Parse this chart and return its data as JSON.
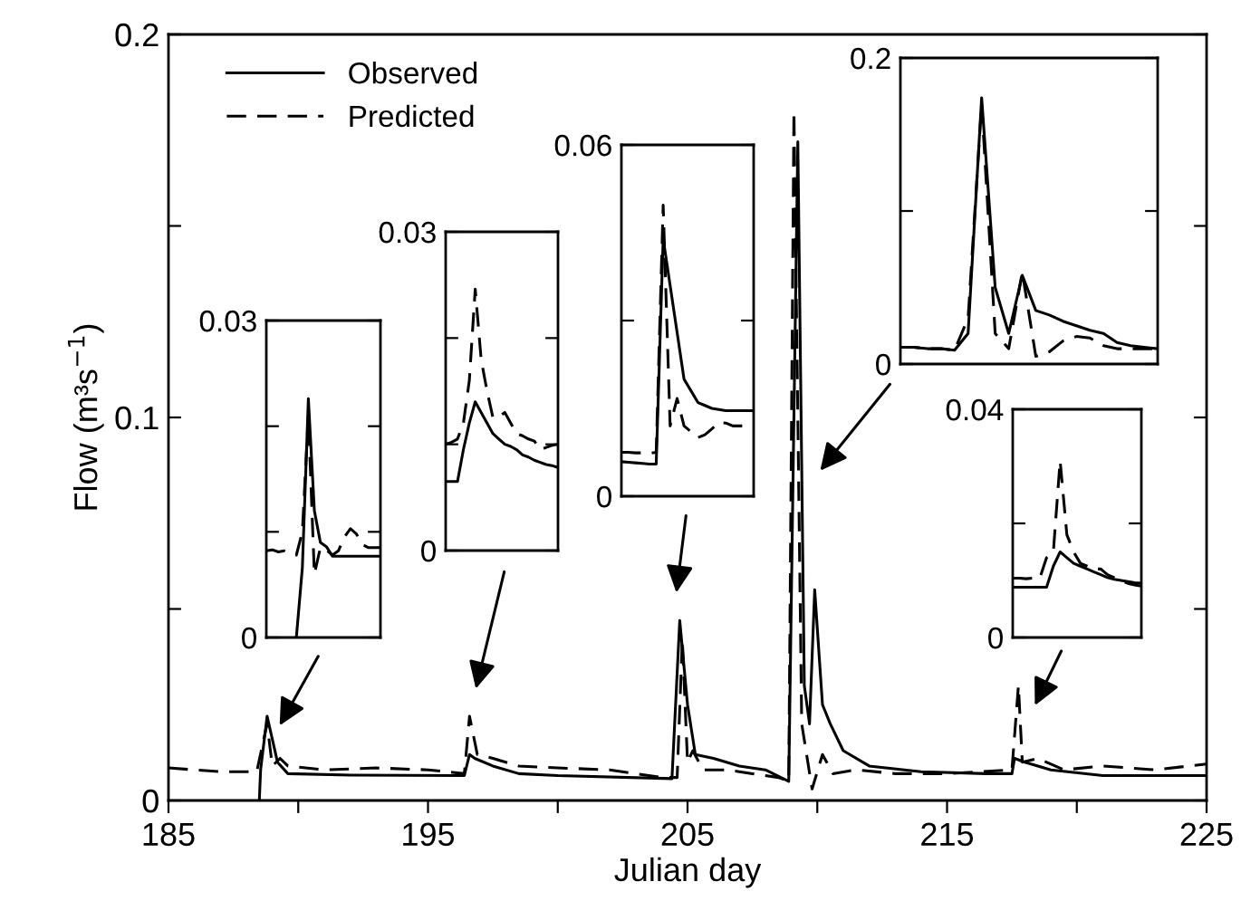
{
  "chart_data": [
    {
      "type": "line",
      "xlabel": "Julian day",
      "ylabel": "Flow (m³s$^{−1}$)",
      "legend": "top left",
      "xlim": [
        185,
        225
      ],
      "xticks": [
        185,
        {
          "value": 190,
          "label": null
        },
        195,
        {
          "value": 200,
          "label": null
        },
        205,
        {
          "value": 210,
          "label": null
        },
        215,
        {
          "value": 220,
          "label": null
        },
        225
      ],
      "ylim": [
        0,
        0.2
      ],
      "yticks": [
        0,
        {
          "value": 0.05,
          "label": null
        },
        0.1,
        {
          "value": 0.15,
          "label": null
        },
        0.2
      ],
      "series": [
        {
          "name": "Observed",
          "color": "#000000",
          "line_style": "solid",
          "x": [
            188.5,
            188.55,
            188.8,
            189.2,
            189.6,
            192,
            196.4,
            196.6,
            196.8,
            197.5,
            198.5,
            200,
            204.4,
            204.7,
            205.0,
            205.3,
            206,
            207,
            208,
            208.9,
            209.25,
            209.5,
            209.7,
            209.9,
            210.2,
            210.5,
            211,
            212,
            214,
            216.5,
            217.5,
            217.6,
            218,
            219,
            221,
            225
          ],
          "values": [
            0,
            0.008,
            0.022,
            0.01,
            0.007,
            0.0066,
            0.0065,
            0.012,
            0.011,
            0.009,
            0.007,
            0.0065,
            0.0057,
            0.047,
            0.025,
            0.012,
            0.011,
            0.009,
            0.008,
            0.005,
            0.172,
            0.03,
            0.02,
            0.055,
            0.025,
            0.02,
            0.013,
            0.009,
            0.0075,
            0.007,
            0.007,
            0.011,
            0.01,
            0.008,
            0.0065,
            0.0065
          ]
        },
        {
          "name": "Predicted",
          "color": "#000000",
          "line_style": "dashed",
          "x": [
            185,
            186,
            187,
            188.4,
            188.8,
            189.0,
            189.3,
            189.6,
            191,
            193,
            195,
            196.4,
            196.6,
            196.9,
            197.5,
            198.5,
            200,
            202,
            204,
            204.6,
            204.8,
            205.0,
            205.2,
            205.6,
            206.5,
            207.5,
            208.5,
            208.9,
            209.1,
            209.4,
            209.8,
            210.2,
            210.6,
            211.5,
            213,
            215,
            217.5,
            217.75,
            217.9,
            218.5,
            219.5,
            221,
            223,
            225
          ],
          "values": [
            0.0085,
            0.008,
            0.0075,
            0.0075,
            0.02,
            0.009,
            0.011,
            0.009,
            0.008,
            0.0085,
            0.008,
            0.007,
            0.022,
            0.012,
            0.011,
            0.009,
            0.0085,
            0.008,
            0.006,
            0.006,
            0.042,
            0.01,
            0.013,
            0.008,
            0.008,
            0.007,
            0.006,
            0.005,
            0.18,
            0.02,
            0.003,
            0.012,
            0.007,
            0.008,
            0.007,
            0.007,
            0.008,
            0.03,
            0.01,
            0.011,
            0.008,
            0.009,
            0.008,
            0.0095
          ]
        }
      ]
    },
    {
      "type": "line",
      "tick_labels": "y",
      "categories": [
        null,
        null,
        null,
        null,
        null,
        null,
        null,
        null,
        null,
        null,
        null,
        null,
        null,
        null,
        null,
        null,
        null,
        null,
        null,
        null
      ],
      "ylim": [
        0,
        0.03
      ],
      "yticks": [
        0,
        {
          "value": 0.01,
          "label": null
        },
        {
          "value": 0.02,
          "label": null
        },
        0.03
      ],
      "series": [
        {
          "color": "#000000",
          "line_style": "solid",
          "values": [
            null,
            null,
            null,
            null,
            null,
            0,
            0.0066,
            0.0226,
            0.012,
            0.009,
            0.0086,
            0.0077,
            0.0077,
            0.0077,
            0.0077,
            0.0077,
            0.0077,
            0.0077,
            0.0077,
            0.0077
          ]
        },
        {
          "color": "#000000",
          "line_style": "dashed",
          "values": [
            0.0082,
            0.0083,
            0.0081,
            0.0082,
            0.008,
            0.0078,
            0.01,
            0.021,
            0.006,
            0.0085,
            0.0083,
            0.0078,
            0.0082,
            0.0095,
            0.0103,
            0.0098,
            0.0088,
            0.0085,
            0.0085,
            0.0085
          ]
        }
      ]
    },
    {
      "type": "line",
      "tick_labels": "y",
      "categories": [
        null,
        null,
        null,
        null,
        null,
        null,
        null,
        null,
        null,
        null,
        null,
        null,
        null,
        null,
        null,
        null,
        null,
        null,
        null,
        null
      ],
      "ylim": [
        0,
        0.03
      ],
      "yticks": [
        0,
        {
          "value": 0.01,
          "label": null
        },
        {
          "value": 0.02,
          "label": null
        },
        0.03
      ],
      "series": [
        {
          "color": "#000000",
          "line_style": "solid",
          "values": [
            0.0065,
            0.0065,
            0.0065,
            0.0095,
            0.012,
            0.014,
            0.013,
            0.012,
            0.011,
            0.0105,
            0.01,
            0.0098,
            0.0095,
            0.009,
            0.0088,
            0.0085,
            0.0083,
            0.0081,
            0.008,
            0.0078
          ]
        },
        {
          "color": "#000000",
          "line_style": "dashed",
          "values": [
            0.01,
            0.0102,
            0.0105,
            0.012,
            0.016,
            0.0246,
            0.018,
            0.015,
            0.0125,
            0.0126,
            0.013,
            0.012,
            0.011,
            0.0108,
            0.0105,
            0.0103,
            0.0095,
            0.0097,
            0.0099,
            0.01
          ]
        }
      ]
    },
    {
      "type": "line",
      "tick_labels": "y",
      "categories": [
        null,
        null,
        null,
        null,
        null,
        null,
        null,
        null,
        null,
        null,
        null,
        null,
        null,
        null,
        null,
        null,
        null,
        null,
        null,
        null
      ],
      "ylim": [
        0,
        0.06
      ],
      "yticks": [
        0,
        {
          "value": 0.03,
          "label": null
        },
        0.06
      ],
      "series": [
        {
          "color": "#000000",
          "line_style": "solid",
          "values": [
            0.0059,
            0.0058,
            0.0057,
            0.0056,
            0.0055,
            0.0055,
            0.044,
            0.036,
            0.028,
            0.02,
            0.018,
            0.016,
            0.0155,
            0.015,
            0.0148,
            0.0146,
            0.0146,
            0.0146,
            0.0146,
            0.0146
          ]
        },
        {
          "color": "#000000",
          "line_style": "dashed",
          "values": [
            0.0075,
            0.0075,
            0.0074,
            0.0074,
            0.0073,
            0.0075,
            0.0497,
            0.012,
            0.0167,
            0.012,
            0.011,
            0.01,
            0.0105,
            0.0115,
            0.0126,
            0.0125,
            0.012,
            0.012,
            0.012,
            0.012
          ]
        }
      ]
    },
    {
      "type": "line",
      "tick_labels": "y",
      "categories": [
        null,
        null,
        null,
        null,
        null,
        null,
        null,
        null,
        null,
        null,
        null,
        null,
        null,
        null,
        null,
        null,
        null,
        null,
        null,
        null
      ],
      "ylim": [
        0,
        0.2
      ],
      "yticks": [
        0,
        {
          "value": 0.1,
          "label": null
        },
        0.2
      ],
      "series": [
        {
          "color": "#000000",
          "line_style": "solid",
          "values": [
            0.011,
            0.011,
            0.01,
            0.01,
            0.009,
            0.02,
            0.174,
            0.05,
            0.02,
            0.058,
            0.035,
            0.032,
            0.028,
            0.025,
            0.022,
            0.02,
            0.014,
            0.012,
            0.011,
            0.01
          ]
        },
        {
          "color": "#000000",
          "line_style": "dashed",
          "values": [
            0.011,
            0.011,
            0.01,
            0.01,
            0.009,
            0.03,
            0.17,
            0.02,
            0.01,
            0.06,
            0.005,
            0.008,
            0.015,
            0.018,
            0.017,
            0.012,
            0.01,
            0.01,
            0.01,
            0.01
          ]
        }
      ]
    },
    {
      "type": "line",
      "tick_labels": "y",
      "categories": [
        null,
        null,
        null,
        null,
        null,
        null,
        null,
        null,
        null,
        null,
        null,
        null,
        null,
        null,
        null,
        null,
        null,
        null,
        null,
        null
      ],
      "ylim": [
        0,
        0.04
      ],
      "yticks": [
        0,
        {
          "value": 0.02,
          "label": null
        },
        0.04
      ],
      "series": [
        {
          "color": "#000000",
          "line_style": "solid",
          "values": [
            0.0088,
            0.0088,
            0.0088,
            0.0088,
            0.0088,
            0.0088,
            0.0125,
            0.015,
            0.014,
            0.013,
            0.0125,
            0.012,
            0.0115,
            0.011,
            0.0105,
            0.0102,
            0.01,
            0.0098,
            0.0096,
            0.0095
          ]
        },
        {
          "color": "#000000",
          "line_style": "dashed",
          "values": [
            0.0104,
            0.0104,
            0.0103,
            0.0104,
            0.0104,
            0.014,
            0.015,
            0.031,
            0.018,
            0.015,
            0.013,
            0.0125,
            0.012,
            0.012,
            0.011,
            0.0105,
            0.01,
            0.0095,
            0.0092,
            0.009
          ]
        }
      ]
    }
  ]
}
